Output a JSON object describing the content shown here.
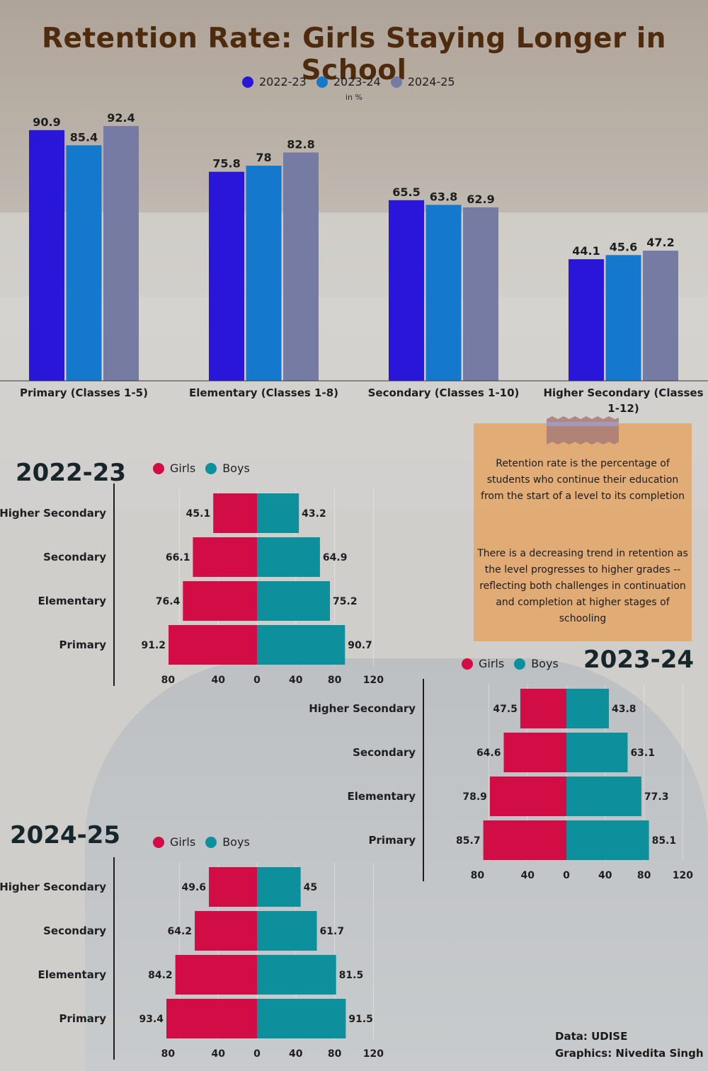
{
  "title": "Retention Rate: Girls Staying Longer in School",
  "legend_top": [
    "2022-23",
    "2023-24",
    "2024-25"
  ],
  "unit_note": "in %",
  "colors": {
    "y2022": "#2a16d8",
    "y2023": "#1479cc",
    "y2024": "#757ba2",
    "girls": "#d20d45",
    "boys": "#0d8f9c"
  },
  "note": {
    "definition": "Retention rate is the percentage of students who continue their education from the start of a level to its completion",
    "trend": "There is a decreasing trend in retention as the level progresses to higher grades -- reflecting both challenges in continuation and completion at higher stages of schooling"
  },
  "credits": {
    "data": "Data: UDISE",
    "graphics": "Graphics: Nivedita Singh"
  },
  "chart_data": [
    {
      "type": "bar",
      "categories": [
        "Primary (Classes 1-5)",
        "Elementary (Classes 1-8)",
        "Secondary (Classes 1-10)",
        "Higher Secondary (Classes 1-12)"
      ],
      "series": [
        {
          "name": "2022-23",
          "values": [
            90.9,
            75.8,
            65.5,
            44.1
          ]
        },
        {
          "name": "2023-24",
          "values": [
            85.4,
            78,
            63.8,
            45.6
          ]
        },
        {
          "name": "2024-25",
          "values": [
            92.4,
            82.8,
            62.9,
            47.2
          ]
        }
      ],
      "ylim": [
        0,
        100
      ],
      "grid": false,
      "legend": "top-center",
      "data_labels": true
    },
    {
      "type": "bar",
      "orientation": "horizontal-diverging",
      "title": "2022-23",
      "categories": [
        "Higher Secondary",
        "Secondary",
        "Elementary",
        "Primary"
      ],
      "series": [
        {
          "name": "Girls",
          "values": [
            45.1,
            66.1,
            76.4,
            91.2
          ]
        },
        {
          "name": "Boys",
          "values": [
            43.2,
            64.9,
            75.2,
            90.7
          ]
        }
      ],
      "xticks": [
        "80",
        "40",
        "0",
        "40",
        "80",
        "120"
      ],
      "legend": "top"
    },
    {
      "type": "bar",
      "orientation": "horizontal-diverging",
      "title": "2023-24",
      "categories": [
        "Higher Secondary",
        "Secondary",
        "Elementary",
        "Primary"
      ],
      "series": [
        {
          "name": "Girls",
          "values": [
            47.5,
            64.6,
            78.9,
            85.7
          ]
        },
        {
          "name": "Boys",
          "values": [
            43.8,
            63.1,
            77.3,
            85.1
          ]
        }
      ],
      "xticks": [
        "80",
        "40",
        "0",
        "40",
        "80",
        "120"
      ],
      "legend": "top"
    },
    {
      "type": "bar",
      "orientation": "horizontal-diverging",
      "title": "2024-25",
      "categories": [
        "Higher Secondary",
        "Secondary",
        "Elementary",
        "Primary"
      ],
      "series": [
        {
          "name": "Girls",
          "values": [
            49.6,
            64.2,
            84.2,
            93.4
          ]
        },
        {
          "name": "Boys",
          "values": [
            45,
            61.7,
            81.5,
            91.5
          ]
        }
      ],
      "xticks": [
        "80",
        "40",
        "0",
        "40",
        "80",
        "120"
      ],
      "legend": "top"
    }
  ]
}
